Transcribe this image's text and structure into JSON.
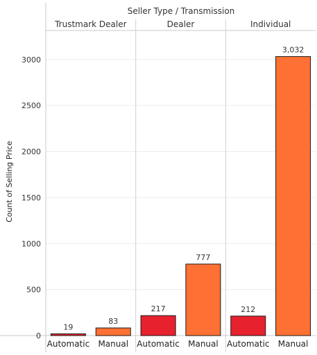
{
  "chart_data": {
    "type": "bar",
    "title": "Seller Type / Transmission",
    "ylabel": "Count of Selling Price",
    "xlabel": "",
    "ylim": [
      0,
      3300
    ],
    "yticks": [
      0,
      500,
      1000,
      1500,
      2000,
      2500,
      3000
    ],
    "ytick_labels": [
      "0",
      "500",
      "1000",
      "1500",
      "2000",
      "2500",
      "3000"
    ],
    "groups": [
      "Trustmark Dealer",
      "Dealer",
      "Individual"
    ],
    "categories": [
      "Automatic",
      "Manual"
    ],
    "series": [
      {
        "group": "Trustmark Dealer",
        "values": [
          19,
          83
        ],
        "labels": [
          "19",
          "83"
        ]
      },
      {
        "group": "Dealer",
        "values": [
          217,
          777
        ],
        "labels": [
          "217",
          "777"
        ]
      },
      {
        "group": "Individual",
        "values": [
          212,
          3032
        ],
        "labels": [
          "212",
          "3,032"
        ]
      }
    ],
    "colors": {
      "Automatic": "#e8212e",
      "Manual": "#fe7033"
    },
    "grid": true
  }
}
